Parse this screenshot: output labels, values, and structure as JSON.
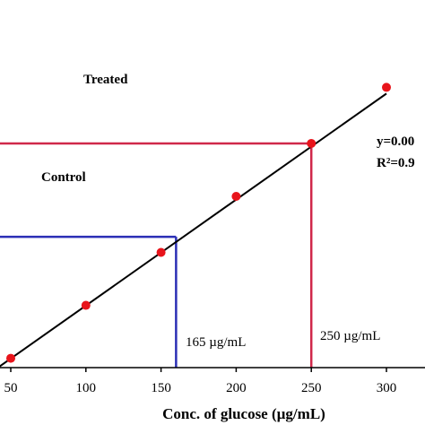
{
  "chart_data": {
    "type": "scatter",
    "xlabel": "Conc. of glucose (µg/mL)",
    "x_ticks": [
      "50",
      "100",
      "150",
      "200",
      "250",
      "300"
    ],
    "xlim": [
      40,
      320
    ],
    "points": [
      {
        "x": 50,
        "y": 0.13
      },
      {
        "x": 100,
        "y": 0.3
      },
      {
        "x": 150,
        "y": 0.47
      },
      {
        "x": 200,
        "y": 0.65
      },
      {
        "x": 250,
        "y": 0.82
      },
      {
        "x": 300,
        "y": 1.0
      }
    ],
    "fit_line": {
      "x0": 40,
      "y0": 0.095,
      "x1": 300,
      "y1": 0.98
    },
    "annotations": {
      "treated": {
        "label": "Treated",
        "x": 250,
        "y": 0.82,
        "value_label": "250 µg/mL",
        "color": "#d0284a"
      },
      "control": {
        "label": "Control",
        "x": 160,
        "y": 0.52,
        "value_label": "165 µg/mL",
        "color": "#2b2fb5"
      }
    },
    "equation": {
      "line1": "y=0.00",
      "line2": "R²=0.9"
    },
    "colors": {
      "points": "#e8141b",
      "fit": "#000000"
    }
  }
}
